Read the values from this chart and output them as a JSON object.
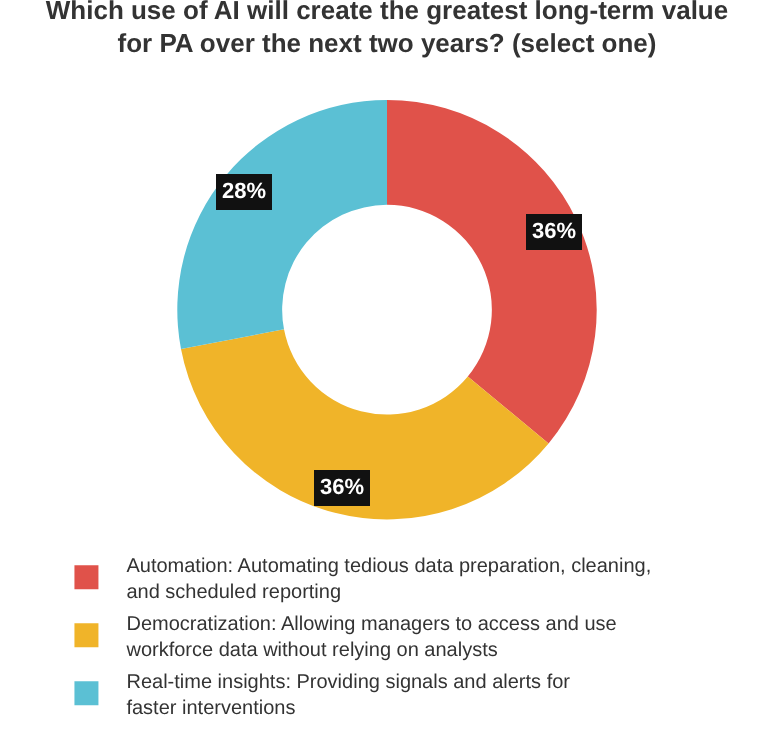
{
  "chart_data": {
    "type": "donut",
    "title": "Which use of AI will create the greatest long-term value for PA over the next two years? (select one)",
    "categories": [
      "Automation: Automating tedious data preparation, cleaning, and scheduled reporting",
      "Democratization: Allowing managers to access and use workforce data without relying on analysts",
      "Real-time insights: Providing signals and alerts for faster interventions"
    ],
    "values": [
      36,
      36,
      28
    ],
    "colors": [
      "#e0524a",
      "#f0b429",
      "#5bc0d4"
    ],
    "value_labels": [
      "36%",
      "36%",
      "28%"
    ],
    "legend": "bottom"
  }
}
